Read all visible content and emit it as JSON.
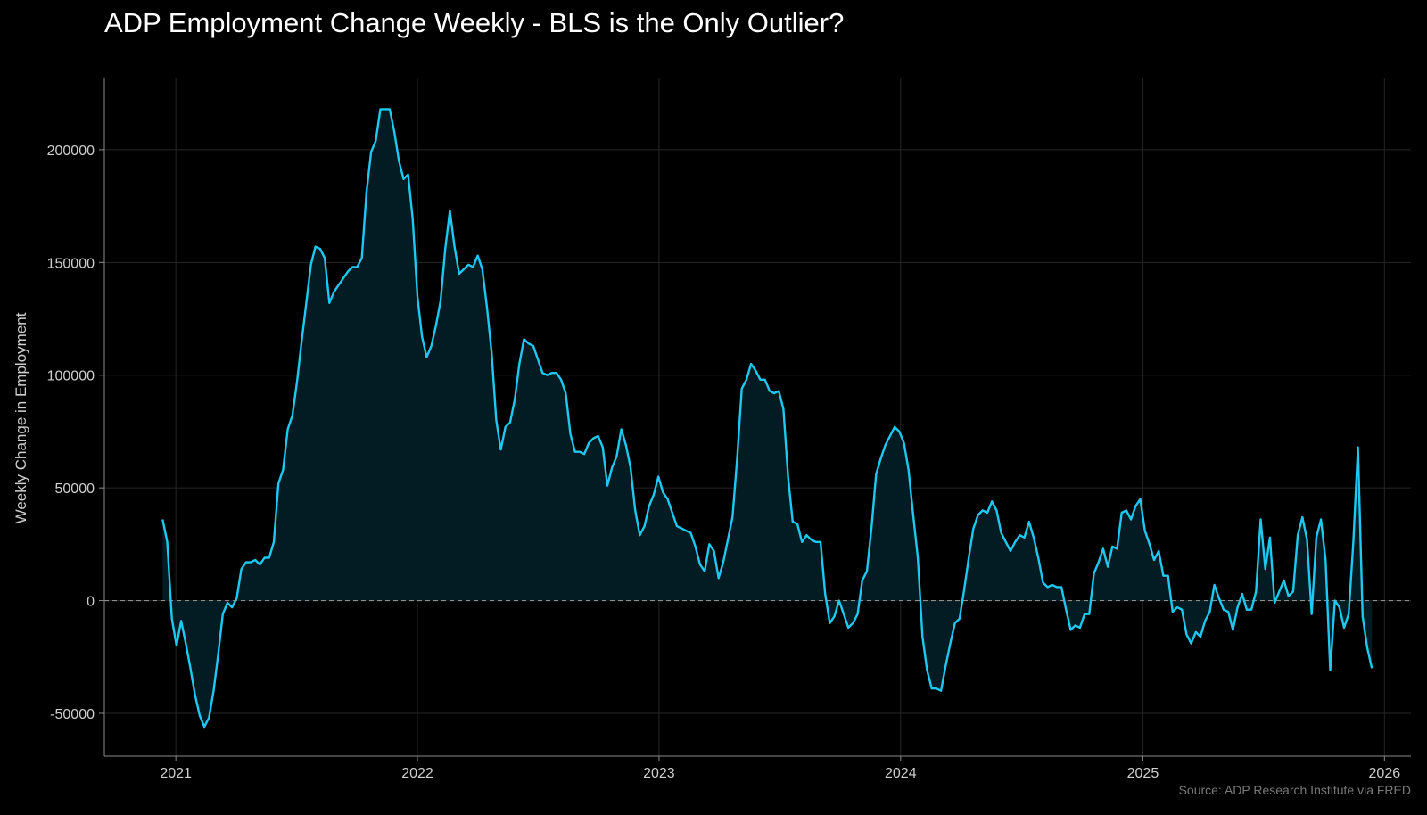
{
  "chart_data": {
    "type": "area",
    "title": "ADP Employment Change Weekly - BLS is the Only Outlier?",
    "xlabel": "",
    "ylabel": "Weekly Change in Employment",
    "source": "Source: ADP Research Institute via FRED",
    "x_ticks": [
      "2021",
      "2022",
      "2023",
      "2024",
      "2025",
      "2026"
    ],
    "y_ticks": [
      -50000,
      0,
      50000,
      100000,
      150000,
      200000
    ],
    "xlim": [
      "2020-09-15",
      "2026-02-10"
    ],
    "ylim": [
      -69000,
      232000
    ],
    "grid": true,
    "reference_line": 0,
    "line_color": "#1ec8f0",
    "fill_color": "#031b22",
    "x": [
      "2020-12-12",
      "2020-12-19",
      "2020-12-26",
      "2021-01-02",
      "2021-01-09",
      "2021-01-16",
      "2021-01-23",
      "2021-01-30",
      "2021-02-06",
      "2021-02-13",
      "2021-02-20",
      "2021-02-27",
      "2021-03-06",
      "2021-03-13",
      "2021-03-20",
      "2021-03-27",
      "2021-04-03",
      "2021-04-10",
      "2021-04-17",
      "2021-04-24",
      "2021-05-01",
      "2021-05-08",
      "2021-05-15",
      "2021-05-22",
      "2021-05-29",
      "2021-06-05",
      "2021-06-12",
      "2021-06-19",
      "2021-06-26",
      "2021-07-03",
      "2021-07-10",
      "2021-07-17",
      "2021-07-24",
      "2021-07-31",
      "2021-08-07",
      "2021-08-14",
      "2021-08-21",
      "2021-08-28",
      "2021-09-04",
      "2021-09-11",
      "2021-09-18",
      "2021-09-25",
      "2021-10-02",
      "2021-10-09",
      "2021-10-16",
      "2021-10-23",
      "2021-10-30",
      "2021-11-06",
      "2021-11-13",
      "2021-11-20",
      "2021-11-27",
      "2021-12-04",
      "2021-12-11",
      "2021-12-18",
      "2021-12-25",
      "2022-01-01",
      "2022-01-08",
      "2022-01-15",
      "2022-01-22",
      "2022-01-29",
      "2022-02-05",
      "2022-02-12",
      "2022-02-19",
      "2022-02-26",
      "2022-03-05",
      "2022-03-12",
      "2022-03-19",
      "2022-03-26",
      "2022-04-02",
      "2022-04-09",
      "2022-04-16",
      "2022-04-23",
      "2022-04-30",
      "2022-05-07",
      "2022-05-14",
      "2022-05-21",
      "2022-05-28",
      "2022-06-04",
      "2022-06-11",
      "2022-06-18",
      "2022-06-25",
      "2022-07-02",
      "2022-07-09",
      "2022-07-16",
      "2022-07-23",
      "2022-07-30",
      "2022-08-06",
      "2022-08-13",
      "2022-08-20",
      "2022-08-27",
      "2022-09-03",
      "2022-09-10",
      "2022-09-17",
      "2022-09-24",
      "2022-10-01",
      "2022-10-08",
      "2022-10-15",
      "2022-10-22",
      "2022-10-29",
      "2022-11-05",
      "2022-11-12",
      "2022-11-19",
      "2022-11-26",
      "2022-12-03",
      "2022-12-10",
      "2022-12-17",
      "2022-12-24",
      "2022-12-31",
      "2023-01-07",
      "2023-01-14",
      "2023-01-21",
      "2023-01-28",
      "2023-02-04",
      "2023-02-11",
      "2023-02-18",
      "2023-02-25",
      "2023-03-04",
      "2023-03-11",
      "2023-03-18",
      "2023-03-25",
      "2023-04-01",
      "2023-04-08",
      "2023-04-15",
      "2023-04-22",
      "2023-04-29",
      "2023-05-06",
      "2023-05-13",
      "2023-05-20",
      "2023-05-27",
      "2023-06-03",
      "2023-06-10",
      "2023-06-17",
      "2023-06-24",
      "2023-07-01",
      "2023-07-08",
      "2023-07-15",
      "2023-07-22",
      "2023-07-29",
      "2023-08-05",
      "2023-08-12",
      "2023-08-19",
      "2023-08-26",
      "2023-09-02",
      "2023-09-09",
      "2023-09-16",
      "2023-09-23",
      "2023-09-30",
      "2023-10-07",
      "2023-10-14",
      "2023-10-21",
      "2023-10-28",
      "2023-11-04",
      "2023-11-11",
      "2023-11-18",
      "2023-11-25",
      "2023-12-02",
      "2023-12-09",
      "2023-12-16",
      "2023-12-23",
      "2023-12-30",
      "2024-01-06",
      "2024-01-13",
      "2024-01-20",
      "2024-01-27",
      "2024-02-03",
      "2024-02-10",
      "2024-02-17",
      "2024-02-24",
      "2024-03-02",
      "2024-03-09",
      "2024-03-16",
      "2024-03-23",
      "2024-03-30",
      "2024-04-06",
      "2024-04-13",
      "2024-04-20",
      "2024-04-27",
      "2024-05-04",
      "2024-05-11",
      "2024-05-18",
      "2024-05-25",
      "2024-06-01",
      "2024-06-08",
      "2024-06-15",
      "2024-06-22",
      "2024-06-29",
      "2024-07-06",
      "2024-07-13",
      "2024-07-20",
      "2024-07-27",
      "2024-08-03",
      "2024-08-10",
      "2024-08-17",
      "2024-08-24",
      "2024-08-31",
      "2024-09-07",
      "2024-09-14",
      "2024-09-21",
      "2024-09-28",
      "2024-10-05",
      "2024-10-12",
      "2024-10-19",
      "2024-10-26",
      "2024-11-02",
      "2024-11-09",
      "2024-11-16",
      "2024-11-23",
      "2024-11-30",
      "2024-12-07",
      "2024-12-14",
      "2024-12-21",
      "2024-12-28",
      "2025-01-04",
      "2025-01-11",
      "2025-01-18",
      "2025-01-25",
      "2025-02-01",
      "2025-02-08",
      "2025-02-15",
      "2025-02-22",
      "2025-03-01",
      "2025-03-08",
      "2025-03-15",
      "2025-03-22",
      "2025-03-29",
      "2025-04-05",
      "2025-04-12",
      "2025-04-19",
      "2025-04-26",
      "2025-05-03",
      "2025-05-10",
      "2025-05-17",
      "2025-05-24",
      "2025-05-31",
      "2025-06-07",
      "2025-06-14",
      "2025-06-21",
      "2025-06-28",
      "2025-07-05",
      "2025-07-12",
      "2025-07-19",
      "2025-07-26",
      "2025-08-02",
      "2025-08-09",
      "2025-08-16",
      "2025-08-23",
      "2025-08-30",
      "2025-09-06",
      "2025-09-13",
      "2025-09-20",
      "2025-09-27",
      "2025-10-04",
      "2025-10-11",
      "2025-10-18",
      "2025-10-25",
      "2025-11-01",
      "2025-11-08",
      "2025-11-15",
      "2025-11-22",
      "2025-11-29",
      "2025-12-06",
      "2025-12-13"
    ],
    "series": [
      {
        "values": [
          36000,
          26000,
          -8000,
          -20000,
          -9000,
          -19000,
          -30000,
          -42000,
          -51000,
          -56000,
          -52000,
          -40000,
          -24000,
          -6000,
          -1000,
          -3000,
          1000,
          14000,
          17000,
          17000,
          18000,
          16000,
          19000,
          19000,
          26000,
          52000,
          58000,
          76000,
          82000,
          97000,
          115000,
          132000,
          149000,
          157000,
          156000,
          152000,
          132000,
          137000,
          140000,
          143000,
          146000,
          148000,
          148000,
          152000,
          181000,
          199000,
          204000,
          218000,
          218000,
          218000,
          208000,
          195000,
          187000,
          189000,
          169000,
          135000,
          117000,
          108000,
          113000,
          122000,
          133000,
          156000,
          173000,
          157000,
          145000,
          147000,
          149000,
          148000,
          153000,
          147000,
          130000,
          110000,
          80000,
          67000,
          77000,
          79000,
          89000,
          105000,
          116000,
          114000,
          113000,
          107000,
          101000,
          100000,
          101000,
          101000,
          98000,
          92000,
          74000,
          66000,
          66000,
          65000,
          70000,
          72000,
          73000,
          68000,
          51000,
          59000,
          64000,
          76000,
          69000,
          59000,
          40000,
          29000,
          33000,
          42000,
          47000,
          55000,
          48000,
          45000,
          39000,
          33000,
          32000,
          31000,
          30000,
          24000,
          16000,
          13000,
          25000,
          22000,
          10000,
          17000,
          27000,
          37000,
          63000,
          94000,
          98000,
          105000,
          102000,
          98000,
          98000,
          93000,
          92000,
          93000,
          85000,
          55000,
          35000,
          34000,
          26000,
          29000,
          27000,
          26000,
          26000,
          3000,
          -10000,
          -7000,
          0,
          -6000,
          -12000,
          -10000,
          -6000,
          9000,
          13000,
          32000,
          56000,
          63000,
          69000,
          73000,
          77000,
          75000,
          70000,
          58000,
          38000,
          19000,
          -16000,
          -31000,
          -39000,
          -39000,
          -40000,
          -29000,
          -19000,
          -10000,
          -8000,
          5000,
          19000,
          32000,
          38000,
          40000,
          39000,
          44000,
          40000,
          30000,
          26000,
          22000,
          26000,
          29000,
          28000,
          35000,
          28000,
          19000,
          8000,
          6000,
          7000,
          6000,
          6000,
          -4000,
          -13000,
          -11000,
          -12000,
          -6000,
          -6000,
          12000,
          17000,
          23000,
          15000,
          24000,
          23000,
          39000,
          40000,
          36000,
          42000,
          45000,
          31000,
          25000,
          18000,
          22000,
          11000,
          11000,
          -5000,
          -3000,
          -4000,
          -15000,
          -19000,
          -14000,
          -16000,
          -9000,
          -5000,
          7000,
          1000,
          -4000,
          -5000,
          -13000,
          -3000,
          3000,
          -4000,
          -4000,
          4000,
          36000,
          14000,
          28000,
          -1000,
          4000,
          9000,
          2000,
          4000,
          29000,
          37000,
          27000,
          -6000,
          28000,
          36000,
          18000,
          -31000,
          0,
          -3000,
          -12000,
          -6000,
          26000,
          68000,
          -7000,
          -21000,
          -30000
        ]
      }
    ]
  }
}
